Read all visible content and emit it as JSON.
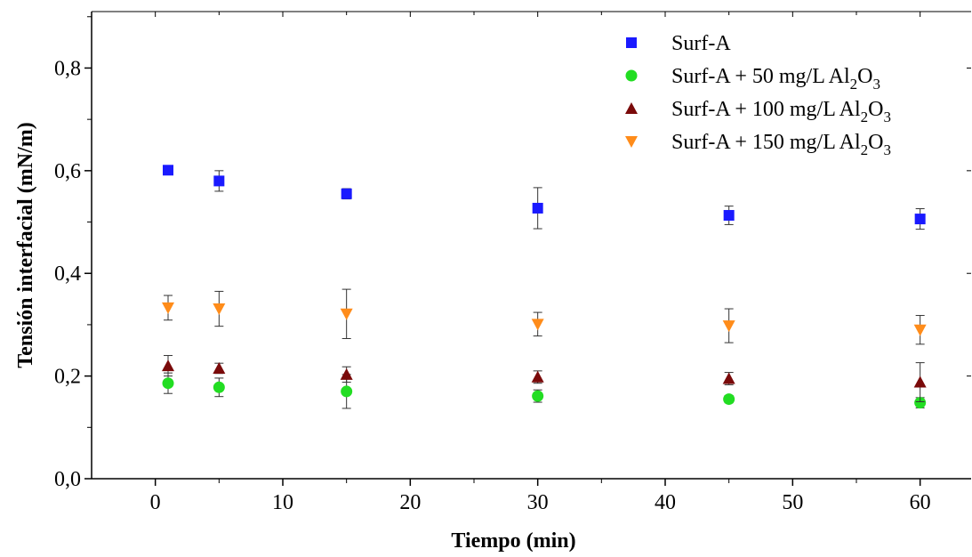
{
  "chart_data": {
    "type": "scatter",
    "title": "",
    "xlabel": "Tiempo (min)",
    "ylabel": "Tensión interfacial (mN/m)",
    "xlim": [
      -5,
      64
    ],
    "ylim": [
      0,
      0.91
    ],
    "xticks": [
      0,
      10,
      20,
      30,
      40,
      50,
      60
    ],
    "xtick_labels": [
      "0",
      "10",
      "20",
      "30",
      "40",
      "50",
      "60"
    ],
    "yticks": [
      0,
      0.2,
      0.4,
      0.6,
      0.8
    ],
    "ytick_labels": [
      "0,0",
      "0,2",
      "0,4",
      "0,6",
      "0,8"
    ],
    "grid": false,
    "legend_position": "top-right",
    "x": [
      1,
      5,
      15,
      30,
      45,
      60
    ],
    "series": [
      {
        "name": "Surf-A",
        "legend_main": "Surf-A",
        "legend_sub": "",
        "legend_tail": "",
        "color": "#1a1aff",
        "marker": "square",
        "values": [
          0.601,
          0.58,
          0.555,
          0.527,
          0.513,
          0.506
        ],
        "errors": [
          0.003,
          0.02,
          0.01,
          0.04,
          0.018,
          0.02
        ]
      },
      {
        "name": "Surf-A + 50 mg/L Al2O3",
        "legend_main": "Surf-A + 50 mg/L Al",
        "legend_sub": "2",
        "legend_tail": "O",
        "legend_sub2": "3",
        "color": "#22dd22",
        "marker": "circle",
        "values": [
          0.186,
          0.178,
          0.17,
          0.161,
          0.155,
          0.148
        ],
        "errors": [
          0.02,
          0.018,
          0.033,
          0.012,
          0.007,
          0.01
        ]
      },
      {
        "name": "Surf-A + 100 mg/L Al2O3",
        "legend_main": "Surf-A + 100 mg/L Al",
        "legend_sub": "2",
        "legend_tail": "O",
        "legend_sub2": "3",
        "color": "#7a0a0a",
        "marker": "triangle-up",
        "values": [
          0.22,
          0.215,
          0.203,
          0.198,
          0.195,
          0.188
        ],
        "errors": [
          0.02,
          0.01,
          0.015,
          0.012,
          0.012,
          0.038
        ]
      },
      {
        "name": "Surf-A + 150 mg/L Al2O3",
        "legend_main": "Surf-A + 150 mg/L Al",
        "legend_sub": "2",
        "legend_tail": "O",
        "legend_sub2": "3",
        "color": "#ff8c1a",
        "marker": "triangle-down",
        "values": [
          0.333,
          0.331,
          0.321,
          0.301,
          0.298,
          0.29
        ],
        "errors": [
          0.024,
          0.034,
          0.048,
          0.023,
          0.033,
          0.028
        ]
      }
    ]
  }
}
